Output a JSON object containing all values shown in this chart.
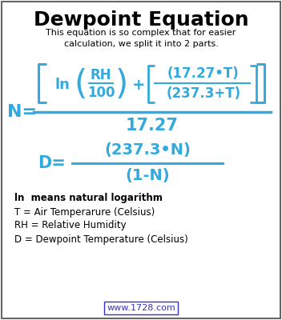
{
  "title": "Dewpoint Equation",
  "subtitle": "This equation is so complex that for easier\ncalculation, we split it into 2 parts.",
  "cyan": "#33AADD",
  "black": "#000000",
  "link_color": "#3333CC",
  "bg_color": "#FFFFFF",
  "border_color": "#666666",
  "url_text": "www.1728.com",
  "legend_line0": "ln  means natural logarithm",
  "legend_line1": "T = Air Temperarure (Celsius)",
  "legend_line2": "RH = Relative Humidity",
  "legend_line3": "D = Dewpoint Temperature (Celsius)",
  "figsize": [
    3.52,
    4.0
  ],
  "dpi": 100
}
